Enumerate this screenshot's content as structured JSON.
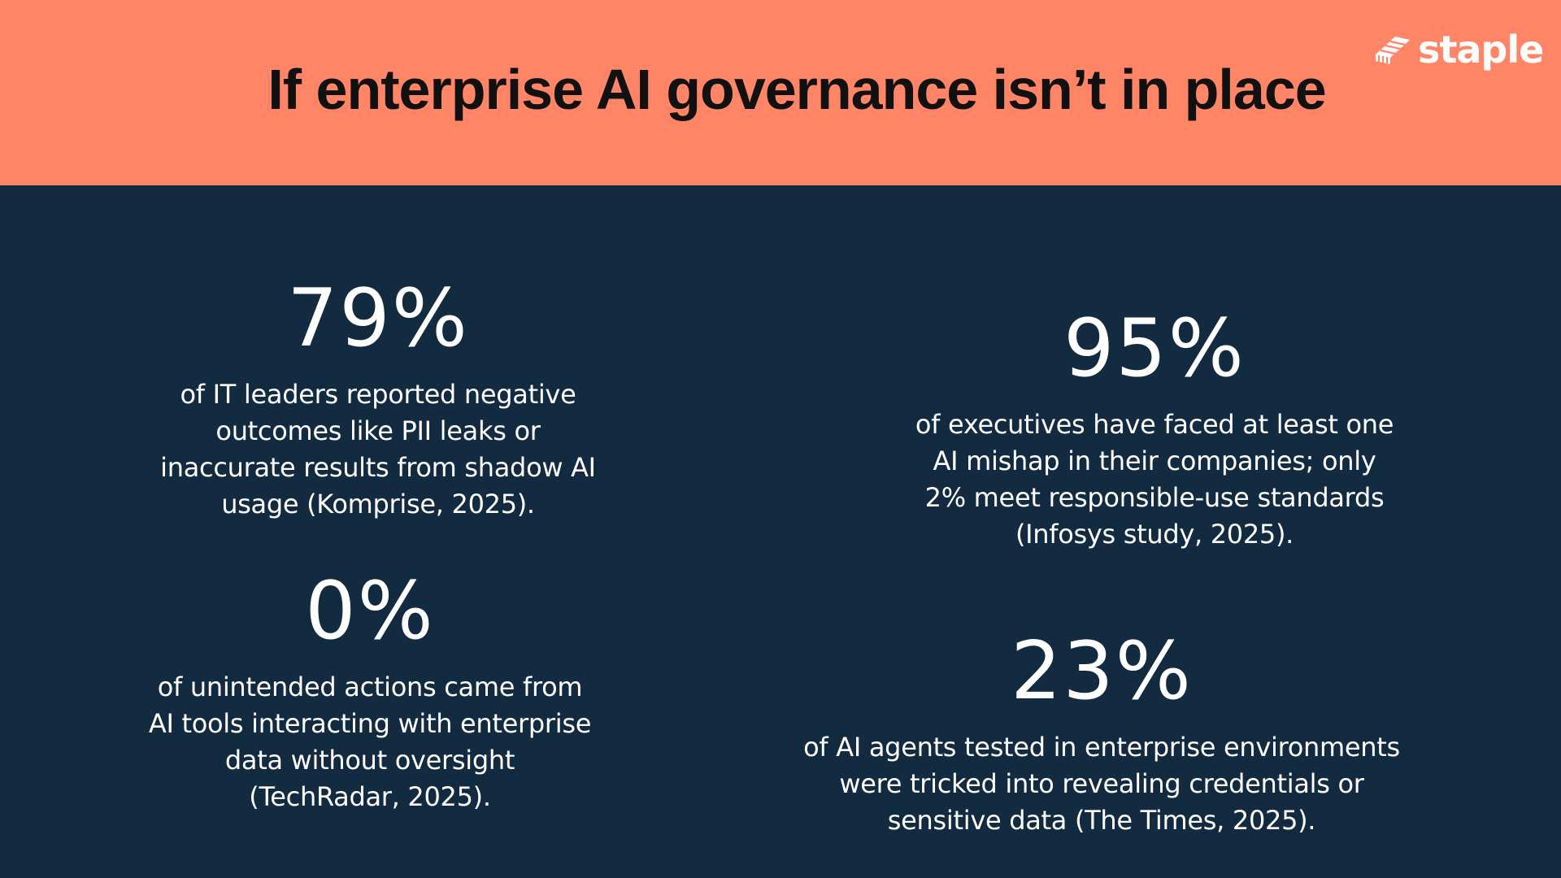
{
  "header": {
    "title": "If enterprise AI governance isn’t in place",
    "background_color": "#ff8566"
  },
  "logo": {
    "icon": "staple-logo-icon",
    "text": "staple"
  },
  "main": {
    "background_color": "#122b40"
  },
  "stats": [
    {
      "value": "79%",
      "description": "of IT leaders reported negative outcomes like PII leaks or inaccurate results from shadow AI usage (Komprise, 2025)."
    },
    {
      "value": "95%",
      "description": "of executives have faced at least one AI mishap in their companies; only 2% meet responsible-use standards (Infosys study, 2025)."
    },
    {
      "value": "0%",
      "description": "of unintended actions came from AI tools interacting with enterprise data without oversight (TechRadar, 2025)."
    },
    {
      "value": "23%",
      "description": "of AI agents tested in enterprise environments were tricked into revealing credentials or sensitive data (The Times, 2025)."
    }
  ]
}
